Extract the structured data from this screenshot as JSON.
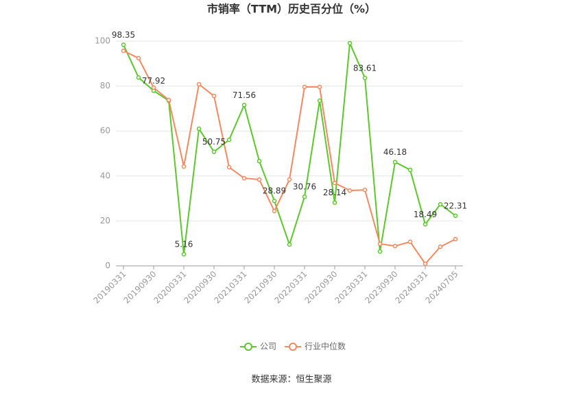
{
  "chart_data": {
    "type": "line",
    "title": "市销率（TTM）历史百分位（%）",
    "source": "数据来源：恒生聚源",
    "categories": [
      "20190331",
      null,
      "20190930",
      null,
      "20200331",
      null,
      "20200930",
      null,
      "20210331",
      null,
      "20210930",
      null,
      "20220331",
      null,
      "20220930",
      null,
      "20230331",
      null,
      "20230930",
      null,
      "20240331",
      null,
      "20240705"
    ],
    "series": [
      {
        "name": "公司",
        "color": "#5cc72b",
        "values": [
          98.35,
          83.8,
          77.92,
          73.5,
          5.16,
          61,
          50.75,
          56.1,
          71.56,
          46.6,
          28.89,
          9.5,
          30.76,
          73.5,
          28.14,
          99.1,
          83.61,
          6.4,
          46.18,
          42.7,
          18.49,
          27.4,
          22.31
        ],
        "value_labels": [
          "98.35",
          null,
          "77.92",
          null,
          "5.16",
          null,
          "50.75",
          null,
          "71.56",
          null,
          "28.89",
          null,
          "30.76",
          null,
          "28.14",
          null,
          "83.61",
          null,
          "46.18",
          null,
          "18.49",
          null,
          "22.31"
        ]
      },
      {
        "name": "行业中位数",
        "color": "#f4895f",
        "values": [
          95.7,
          92.4,
          79.3,
          73.8,
          44.2,
          80.8,
          75.6,
          43.9,
          39,
          38.4,
          24.4,
          38.4,
          79.6,
          79.6,
          36.9,
          33.5,
          33.8,
          9.8,
          8.8,
          10.7,
          0.9,
          8.5,
          11.9
        ]
      }
    ],
    "ylim": [
      0,
      100
    ],
    "yticks": [
      0,
      20,
      40,
      60,
      80,
      100
    ],
    "grid": true,
    "legend": "bottom"
  }
}
